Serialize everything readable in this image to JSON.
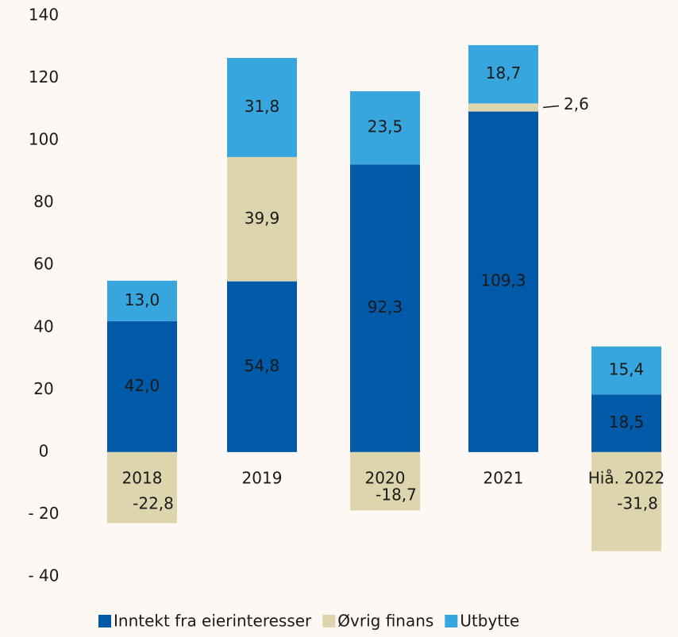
{
  "chart_data": {
    "type": "stacked_bar",
    "categories": [
      "2018",
      "2019",
      "2020",
      "2021",
      "Hiå. 2022"
    ],
    "series": [
      {
        "name": "Inntekt fra eierinteresser",
        "color": "#005aa7",
        "values": [
          42.0,
          54.8,
          92.3,
          109.3,
          18.5
        ],
        "value_labels": [
          "42,0",
          "54,8",
          "92,3",
          "109,3",
          "18,5"
        ]
      },
      {
        "name": "Øvrig finans",
        "color": "#ddd5ad",
        "values": [
          -22.8,
          39.9,
          -18.7,
          2.6,
          -31.8
        ],
        "value_labels": [
          "-22,8",
          "39,9",
          "-18,7",
          "2,6",
          "-31,8"
        ]
      },
      {
        "name": "Utbytte",
        "color": "#38a6de",
        "values": [
          13.0,
          31.8,
          23.5,
          18.7,
          15.4
        ],
        "value_labels": [
          "13,0",
          "31,8",
          "23,5",
          "18,7",
          "15,4"
        ]
      }
    ],
    "ylim": [
      -40,
      140
    ],
    "yticks": [
      {
        "value": -40,
        "label": "- 40"
      },
      {
        "value": -20,
        "label": "- 20"
      },
      0,
      20,
      40,
      60,
      80,
      100,
      120,
      140
    ],
    "legend": "bottom"
  }
}
